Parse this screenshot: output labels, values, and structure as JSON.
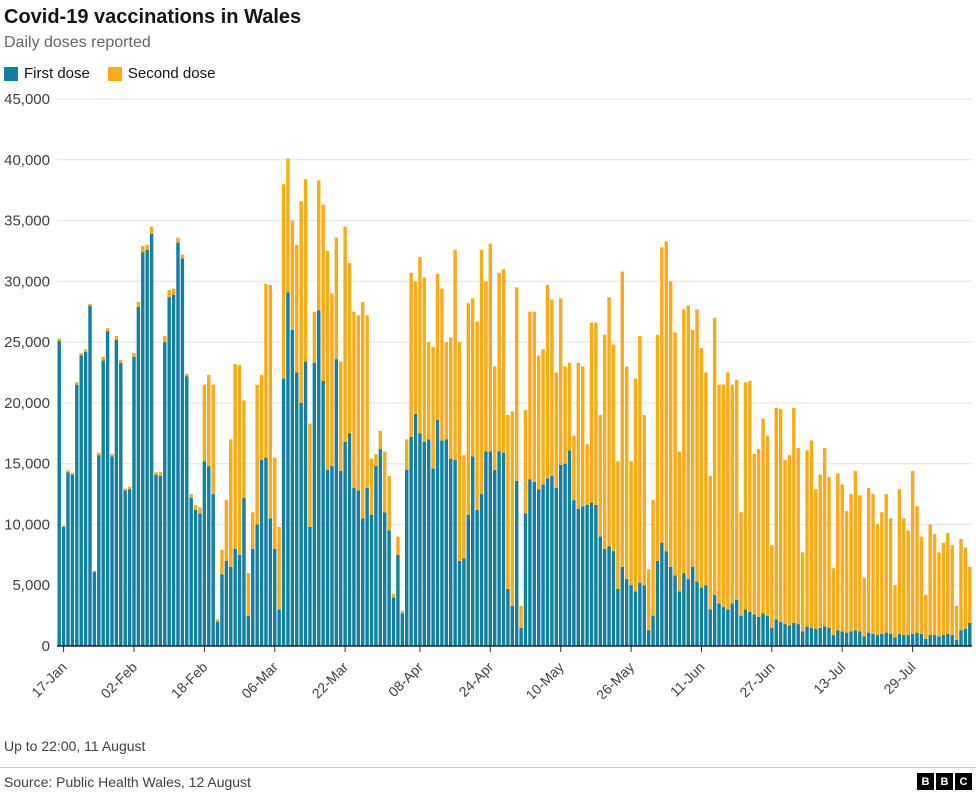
{
  "header": {
    "title": "Covid-19 vaccinations in Wales",
    "subtitle": "Daily doses reported"
  },
  "footer": {
    "note": "Up to 22:00, 11 August",
    "source": "Source: Public Health Wales, 12 August",
    "logo_letters": [
      "B",
      "B",
      "C"
    ]
  },
  "chart_data": {
    "type": "bar",
    "stacked": true,
    "title": "Covid-19 vaccinations in Wales",
    "subtitle": "Daily doses reported",
    "xlabel": "",
    "ylabel": "",
    "ylim": [
      0,
      45000
    ],
    "grid": true,
    "legend_position": "top-left",
    "n_points": 208,
    "x_start": "16-Jan",
    "x_end": "11-Aug",
    "yticks": [
      {
        "value": 0,
        "label": "0"
      },
      {
        "value": 5000,
        "label": "5,000"
      },
      {
        "value": 10000,
        "label": "10,000"
      },
      {
        "value": 15000,
        "label": "15,000"
      },
      {
        "value": 20000,
        "label": "20,000"
      },
      {
        "value": 25000,
        "label": "25,000"
      },
      {
        "value": 30000,
        "label": "30,000"
      },
      {
        "value": 35000,
        "label": "35,000"
      },
      {
        "value": 40000,
        "label": "40,000"
      },
      {
        "value": 45000,
        "label": "45,000"
      }
    ],
    "xticks": [
      {
        "index": 1,
        "label": "17-Jan"
      },
      {
        "index": 17,
        "label": "02-Feb"
      },
      {
        "index": 33,
        "label": "18-Feb"
      },
      {
        "index": 49,
        "label": "06-Mar"
      },
      {
        "index": 65,
        "label": "22-Mar"
      },
      {
        "index": 82,
        "label": "08-Apr"
      },
      {
        "index": 98,
        "label": "24-Apr"
      },
      {
        "index": 114,
        "label": "10-May"
      },
      {
        "index": 130,
        "label": "26-May"
      },
      {
        "index": 146,
        "label": "11-Jun"
      },
      {
        "index": 162,
        "label": "27-Jun"
      },
      {
        "index": 178,
        "label": "13-Jul"
      },
      {
        "index": 194,
        "label": "29-Jul"
      }
    ],
    "series": [
      {
        "name": "First dose",
        "color": "#1380A1",
        "values": [
          25100,
          9800,
          14300,
          14100,
          21500,
          23900,
          24200,
          28000,
          6100,
          15700,
          23500,
          25900,
          15600,
          25200,
          23300,
          12800,
          12900,
          23800,
          27900,
          32400,
          32600,
          33900,
          14100,
          14000,
          25000,
          28700,
          28900,
          33200,
          31900,
          22200,
          12200,
          11200,
          10900,
          15200,
          14800,
          12500,
          2000,
          5900,
          7000,
          6500,
          8000,
          7500,
          12200,
          2500,
          8000,
          10000,
          15300,
          15500,
          10500,
          8000,
          3000,
          22000,
          29100,
          26000,
          22500,
          20000,
          23400,
          9800,
          23300,
          27600,
          21800,
          14500,
          14800,
          23600,
          14400,
          16800,
          17500,
          13000,
          12800,
          10500,
          13000,
          10800,
          14800,
          16200,
          11000,
          9500,
          4000,
          7500,
          2700,
          14500,
          17200,
          19100,
          17500,
          16800,
          17000,
          14600,
          18600,
          16900,
          17000,
          15400,
          15300,
          7000,
          7200,
          10800,
          15600,
          11200,
          12500,
          16000,
          16000,
          14500,
          16000,
          15900,
          4700,
          3300,
          13600,
          1500,
          10900,
          13700,
          13500,
          12900,
          13300,
          13800,
          14000,
          13000,
          14900,
          15000,
          16100,
          12000,
          11300,
          11500,
          11600,
          11800,
          11600,
          9000,
          8000,
          8200,
          7800,
          4700,
          6500,
          5500,
          5000,
          4500,
          5200,
          5000,
          1300,
          2500,
          7000,
          8500,
          7800,
          6500,
          5800,
          4500,
          6000,
          5500,
          6500,
          5300,
          4800,
          5000,
          3000,
          4200,
          3500,
          3200,
          3000,
          3500,
          3800,
          2500,
          3000,
          2800,
          2600,
          2400,
          2700,
          2500,
          1500,
          2200,
          2000,
          1800,
          1700,
          1900,
          1800,
          1200,
          1600,
          1500,
          1400,
          1500,
          1600,
          1500,
          900,
          1300,
          1200,
          1100,
          1200,
          1300,
          1200,
          800,
          1100,
          1000,
          900,
          1000,
          1100,
          1000,
          700,
          1000,
          900,
          900,
          1000,
          1100,
          1000,
          600,
          900,
          900,
          800,
          900,
          1000,
          900,
          500,
          1300,
          1400,
          1900
        ]
      },
      {
        "name": "Second dose",
        "color": "#FAAB18",
        "values": [
          200,
          100,
          150,
          150,
          200,
          200,
          200,
          150,
          100,
          200,
          300,
          250,
          200,
          300,
          250,
          150,
          200,
          300,
          400,
          500,
          400,
          600,
          200,
          300,
          500,
          600,
          500,
          400,
          300,
          200,
          300,
          400,
          500,
          6300,
          7500,
          9000,
          200,
          2000,
          5000,
          10500,
          15200,
          15600,
          8000,
          3500,
          3000,
          11500,
          7000,
          14300,
          19200,
          7500,
          6800,
          16000,
          11000,
          9000,
          10500,
          16600,
          15000,
          8500,
          4200,
          10700,
          14500,
          18000,
          14200,
          10000,
          9000,
          17700,
          14000,
          14500,
          14400,
          17800,
          14200,
          4600,
          1000,
          1500,
          5000,
          4500,
          300,
          1500,
          200,
          2500,
          13500,
          10900,
          14500,
          13500,
          8000,
          10000,
          12000,
          12500,
          8000,
          10000,
          17300,
          18000,
          8500,
          17400,
          13000,
          15500,
          20100,
          14000,
          17100,
          8500,
          14700,
          15100,
          14300,
          16000,
          15900,
          1800,
          8500,
          13800,
          14000,
          11000,
          11100,
          15900,
          14500,
          9500,
          13700,
          8000,
          7200,
          5300,
          12000,
          11500,
          5000,
          14800,
          15000,
          10000,
          17600,
          20500,
          17000,
          10500,
          24300,
          17500,
          10200,
          17500,
          20300,
          14000,
          5000,
          9500,
          18600,
          24300,
          25500,
          23500,
          20000,
          11500,
          21700,
          22500,
          19500,
          22400,
          19700,
          17500,
          11000,
          22800,
          18000,
          18300,
          19500,
          18000,
          18100,
          8500,
          18700,
          19000,
          13200,
          13800,
          16000,
          14800,
          6800,
          17400,
          17500,
          13500,
          14000,
          17700,
          14500,
          6500,
          14500,
          15400,
          11500,
          12600,
          14700,
          12400,
          5500,
          12900,
          12100,
          10000,
          11300,
          13100,
          11200,
          4800,
          11900,
          11500,
          9100,
          10000,
          11400,
          9500,
          4300,
          11900,
          9600,
          8600,
          13400,
          10400,
          8000,
          3600,
          9100,
          8300,
          6900,
          7600,
          8300,
          7400,
          2800,
          7500,
          6700,
          4600
        ]
      }
    ]
  }
}
